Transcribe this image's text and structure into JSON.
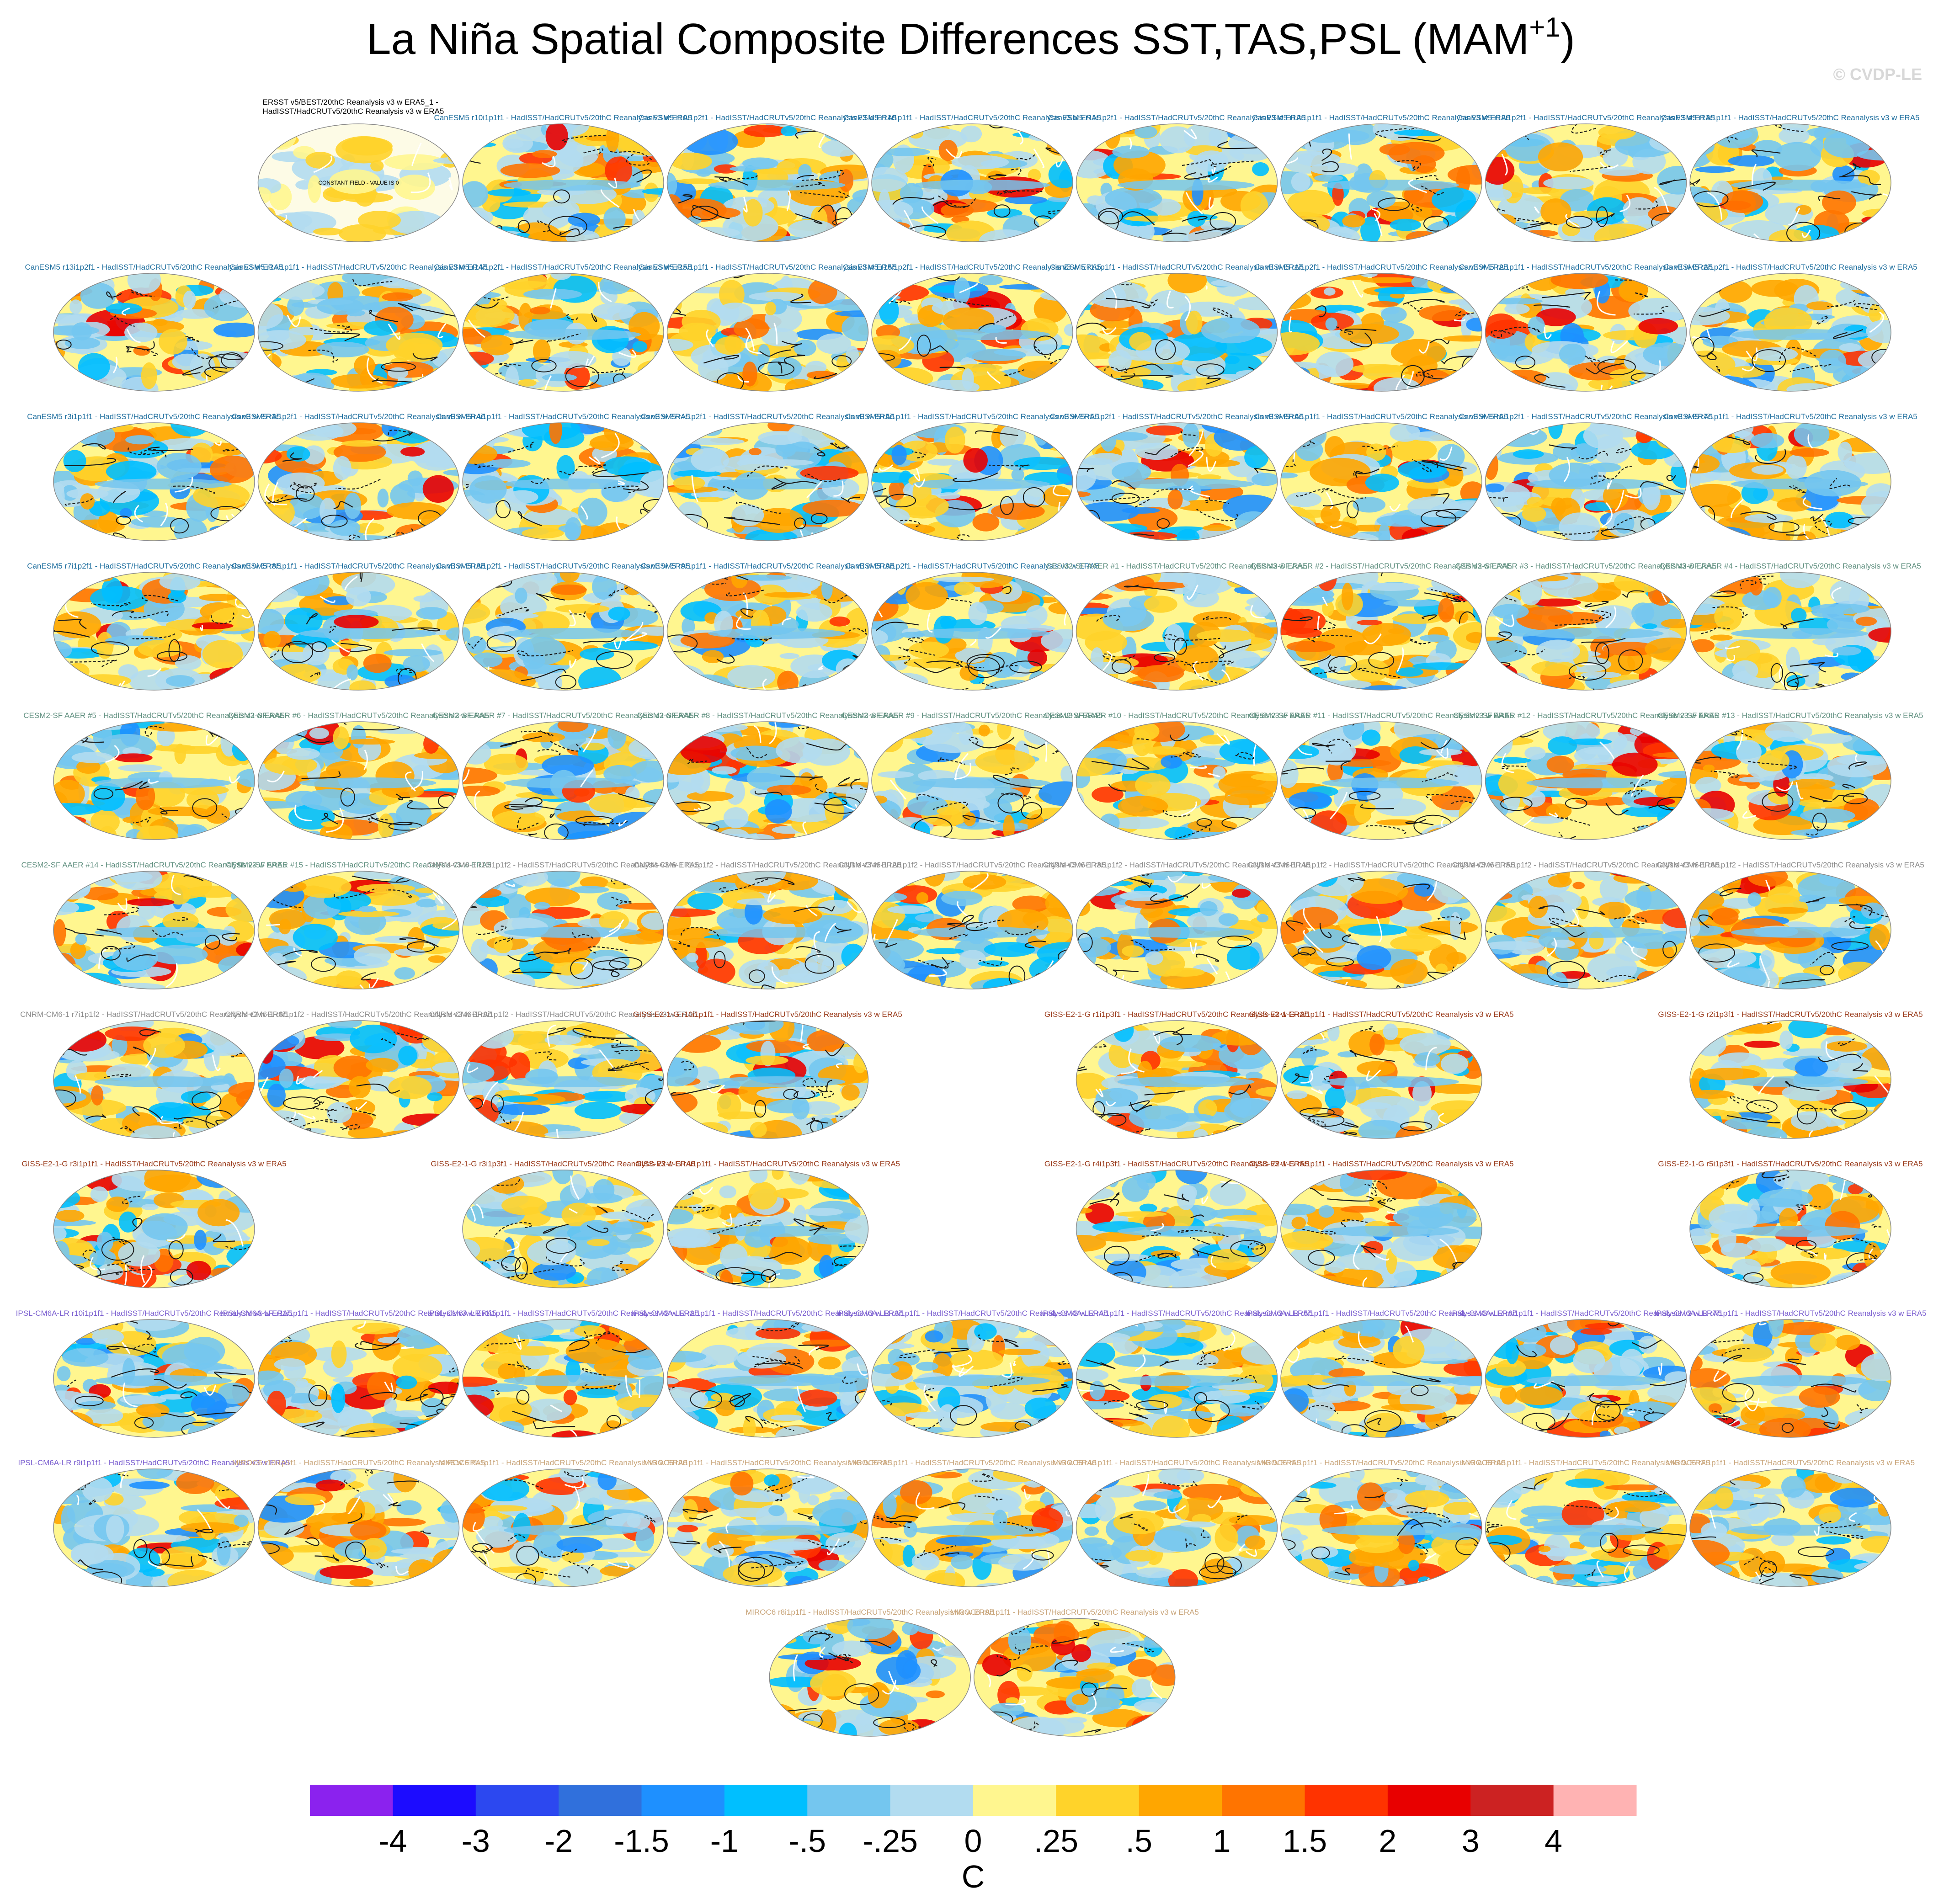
{
  "title": {
    "text": "La Niña Spatial Composite Differences SST,TAS,PSL (MAM",
    "sup": "+1",
    "end": ")"
  },
  "watermark": "© CVDP-LE",
  "rows": [
    [
      null,
      {
        "title": [
          "ERSST v5/BEST/20thC Reanalysis v3 w ERA5_1 -",
          "HadISST/HadCRUTv5/20thC Reanalysis v3 w ERA5"
        ],
        "note": "CONSTANT FIELD - VALUE IS 0",
        "color": "#000000"
      },
      {
        "title": "CanESM5 r10i1p1f1 - HadISST/HadCRUTv5/20thC Reanalysis v3 w ERA5",
        "color": "#1f6f9f"
      },
      {
        "title": "CanESM5 r10i1p2f1 - HadISST/HadCRUTv5/20thC Reanalysis v3 w ERA5",
        "color": "#1f6f9f"
      },
      {
        "title": "CanESM5 r11i1p1f1 - HadISST/HadCRUTv5/20thC Reanalysis v3 w ERA5",
        "color": "#1f6f9f"
      },
      {
        "title": "CanESM5 r11i1p2f1 - HadISST/HadCRUTv5/20thC Reanalysis v3 w ERA5",
        "color": "#1f6f9f"
      },
      {
        "title": "CanESM5 r12i1p1f1 - HadISST/HadCRUTv5/20thC Reanalysis v3 w ERA5",
        "color": "#1f6f9f"
      },
      {
        "title": "CanESM5 r12i1p2f1 - HadISST/HadCRUTv5/20thC Reanalysis v3 w ERA5",
        "color": "#1f6f9f"
      },
      {
        "title": "CanESM5 r13i1p1f1 - HadISST/HadCRUTv5/20thC Reanalysis v3 w ERA5",
        "color": "#1f6f9f"
      }
    ],
    [
      {
        "title": "CanESM5 r13i1p2f1 - HadISST/HadCRUTv5/20thC Reanalysis v3 w ERA5",
        "color": "#1f6f9f"
      },
      {
        "title": "CanESM5 r14i1p1f1 - HadISST/HadCRUTv5/20thC Reanalysis v3 w ERA5",
        "color": "#1f6f9f"
      },
      {
        "title": "CanESM5 r14i1p2f1 - HadISST/HadCRUTv5/20thC Reanalysis v3 w ERA5",
        "color": "#1f6f9f"
      },
      {
        "title": "CanESM5 r15i1p1f1 - HadISST/HadCRUTv5/20thC Reanalysis v3 w ERA5",
        "color": "#1f6f9f"
      },
      {
        "title": "CanESM5 r15i1p2f1 - HadISST/HadCRUTv5/20thC Reanalysis v3 w ERA5",
        "color": "#1f6f9f"
      },
      {
        "title": "CanESM5 r1i1p1f1 - HadISST/HadCRUTv5/20thC Reanalysis v3 w ERA5",
        "color": "#1f6f9f"
      },
      {
        "title": "CanESM5 r1i1p2f1 - HadISST/HadCRUTv5/20thC Reanalysis v3 w ERA5",
        "color": "#1f6f9f"
      },
      {
        "title": "CanESM5 r2i1p1f1 - HadISST/HadCRUTv5/20thC Reanalysis v3 w ERA5",
        "color": "#1f6f9f"
      },
      {
        "title": "CanESM5 r2i1p2f1 - HadISST/HadCRUTv5/20thC Reanalysis v3 w ERA5",
        "color": "#1f6f9f"
      }
    ],
    [
      {
        "title": "CanESM5 r3i1p1f1 - HadISST/HadCRUTv5/20thC Reanalysis v3 w ERA5",
        "color": "#1f6f9f"
      },
      {
        "title": "CanESM5 r3i1p2f1 - HadISST/HadCRUTv5/20thC Reanalysis v3 w ERA5",
        "color": "#1f6f9f"
      },
      {
        "title": "CanESM5 r4i1p1f1 - HadISST/HadCRUTv5/20thC Reanalysis v3 w ERA5",
        "color": "#1f6f9f"
      },
      {
        "title": "CanESM5 r4i1p2f1 - HadISST/HadCRUTv5/20thC Reanalysis v3 w ERA5",
        "color": "#1f6f9f"
      },
      {
        "title": "CanESM5 r5i1p1f1 - HadISST/HadCRUTv5/20thC Reanalysis v3 w ERA5",
        "color": "#1f6f9f"
      },
      {
        "title": "CanESM5 r5i1p2f1 - HadISST/HadCRUTv5/20thC Reanalysis v3 w ERA5",
        "color": "#1f6f9f"
      },
      {
        "title": "CanESM5 r6i1p1f1 - HadISST/HadCRUTv5/20thC Reanalysis v3 w ERA5",
        "color": "#1f6f9f"
      },
      {
        "title": "CanESM5 r6i1p2f1 - HadISST/HadCRUTv5/20thC Reanalysis v3 w ERA5",
        "color": "#1f6f9f"
      },
      {
        "title": "CanESM5 r7i1p1f1 - HadISST/HadCRUTv5/20thC Reanalysis v3 w ERA5",
        "color": "#1f6f9f"
      }
    ],
    [
      {
        "title": "CanESM5 r7i1p2f1 - HadISST/HadCRUTv5/20thC Reanalysis v3 w ERA5",
        "color": "#1f6f9f"
      },
      {
        "title": "CanESM5 r8i1p1f1 - HadISST/HadCRUTv5/20thC Reanalysis v3 w ERA5",
        "color": "#1f6f9f"
      },
      {
        "title": "CanESM5 r8i1p2f1 - HadISST/HadCRUTv5/20thC Reanalysis v3 w ERA5",
        "color": "#1f6f9f"
      },
      {
        "title": "CanESM5 r9i1p1f1 - HadISST/HadCRUTv5/20thC Reanalysis v3 w ERA5",
        "color": "#1f6f9f"
      },
      {
        "title": "CanESM5 r9i1p2f1 - HadISST/HadCRUTv5/20thC Reanalysis v3 w ERA5",
        "color": "#1f6f9f"
      },
      {
        "title": "CESM2-SF AAER #1 - HadISST/HadCRUTv5/20thC Reanalysis v3 w ERA5",
        "color": "#5f8f7f"
      },
      {
        "title": "CESM2-SF AAER #2 - HadISST/HadCRUTv5/20thC Reanalysis v3 w ERA5",
        "color": "#5f8f7f"
      },
      {
        "title": "CESM2-SF AAER #3 - HadISST/HadCRUTv5/20thC Reanalysis v3 w ERA5",
        "color": "#5f8f7f"
      },
      {
        "title": "CESM2-SF AAER #4 - HadISST/HadCRUTv5/20thC Reanalysis v3 w ERA5",
        "color": "#5f8f7f"
      }
    ],
    [
      {
        "title": "CESM2-SF AAER #5 - HadISST/HadCRUTv5/20thC Reanalysis v3 w ERA5",
        "color": "#5f8f7f"
      },
      {
        "title": "CESM2-SF AAER #6 - HadISST/HadCRUTv5/20thC Reanalysis v3 w ERA5",
        "color": "#5f8f7f"
      },
      {
        "title": "CESM2-SF AAER #7 - HadISST/HadCRUTv5/20thC Reanalysis v3 w ERA5",
        "color": "#5f8f7f"
      },
      {
        "title": "CESM2-SF AAER #8 - HadISST/HadCRUTv5/20thC Reanalysis v3 w ERA5",
        "color": "#5f8f7f"
      },
      {
        "title": "CESM2-SF AAER #9 - HadISST/HadCRUTv5/20thC Reanalysis v3 w ERA5",
        "color": "#5f8f7f"
      },
      {
        "title": "CESM2-SF AAER #10 - HadISST/HadCRUTv5/20thC Reanalysis v3 w ERA5",
        "color": "#5f8f7f"
      },
      {
        "title": "CESM2-SF AAER #11 - HadISST/HadCRUTv5/20thC Reanalysis v3 w ERA5",
        "color": "#5f8f7f"
      },
      {
        "title": "CESM2-SF AAER #12 - HadISST/HadCRUTv5/20thC Reanalysis v3 w ERA5",
        "color": "#5f8f7f"
      },
      {
        "title": "CESM2-SF AAER #13 - HadISST/HadCRUTv5/20thC Reanalysis v3 w ERA5",
        "color": "#5f8f7f"
      }
    ],
    [
      {
        "title": "CESM2-SF AAER #14 - HadISST/HadCRUTv5/20thC Reanalysis v3 w ERA5",
        "color": "#5f8f7f"
      },
      {
        "title": "CESM2-SF AAER #15 - HadISST/HadCRUTv5/20thC Reanalysis v3 w ERA5",
        "color": "#5f8f7f"
      },
      {
        "title": "CNRM-CM6-1 r10i1p1f2 - HadISST/HadCRUTv5/20thC Reanalysis v3 w ERA5",
        "color": "#8c8c8c"
      },
      {
        "title": "CNRM-CM6-1 r1i1p1f2 - HadISST/HadCRUTv5/20thC Reanalysis v3 w ERA5",
        "color": "#8c8c8c"
      },
      {
        "title": "CNRM-CM6-1 r2i1p1f2 - HadISST/HadCRUTv5/20thC Reanalysis v3 w ERA5",
        "color": "#8c8c8c"
      },
      {
        "title": "CNRM-CM6-1 r3i1p1f2 - HadISST/HadCRUTv5/20thC Reanalysis v3 w ERA5",
        "color": "#8c8c8c"
      },
      {
        "title": "CNRM-CM6-1 r4i1p1f2 - HadISST/HadCRUTv5/20thC Reanalysis v3 w ERA5",
        "color": "#8c8c8c"
      },
      {
        "title": "CNRM-CM6-1 r5i1p1f2 - HadISST/HadCRUTv5/20thC Reanalysis v3 w ERA5",
        "color": "#8c8c8c"
      },
      {
        "title": "CNRM-CM6-1 r6i1p1f2 - HadISST/HadCRUTv5/20thC Reanalysis v3 w ERA5",
        "color": "#8c8c8c"
      }
    ],
    [
      {
        "title": "CNRM-CM6-1 r7i1p1f2 - HadISST/HadCRUTv5/20thC Reanalysis v3 w ERA5",
        "color": "#8c8c8c"
      },
      {
        "title": "CNRM-CM6-1 r8i1p1f2 - HadISST/HadCRUTv5/20thC Reanalysis v3 w ERA5",
        "color": "#8c8c8c"
      },
      {
        "title": "CNRM-CM6-1 r9i1p1f2 - HadISST/HadCRUTv5/20thC Reanalysis v3 w ERA5",
        "color": "#8c8c8c"
      },
      {
        "title": "GISS-E2-1-G r10i1p1f1 - HadISST/HadCRUTv5/20thC Reanalysis v3 w ERA5",
        "color": "#9a3b1b"
      },
      null,
      {
        "title": "GISS-E2-1-G r1i1p3f1 - HadISST/HadCRUTv5/20thC Reanalysis v3 w ERA5",
        "color": "#9a3b1b"
      },
      {
        "title": "GISS-E2-1-G r2i1p1f1 - HadISST/HadCRUTv5/20thC Reanalysis v3 w ERA5",
        "color": "#9a3b1b"
      },
      null,
      {
        "title": "GISS-E2-1-G r2i1p3f1 - HadISST/HadCRUTv5/20thC Reanalysis v3 w ERA5",
        "color": "#9a3b1b"
      }
    ],
    [
      {
        "title": "GISS-E2-1-G r3i1p1f1 - HadISST/HadCRUTv5/20thC Reanalysis v3 w ERA5",
        "color": "#9a3b1b"
      },
      null,
      {
        "title": "GISS-E2-1-G r3i1p3f1 - HadISST/HadCRUTv5/20thC Reanalysis v3 w ERA5",
        "color": "#9a3b1b"
      },
      {
        "title": "GISS-E2-1-G r4i1p1f1 - HadISST/HadCRUTv5/20thC Reanalysis v3 w ERA5",
        "color": "#9a3b1b"
      },
      null,
      {
        "title": "GISS-E2-1-G r4i1p3f1 - HadISST/HadCRUTv5/20thC Reanalysis v3 w ERA5",
        "color": "#9a3b1b"
      },
      {
        "title": "GISS-E2-1-G r5i1p1f1 - HadISST/HadCRUTv5/20thC Reanalysis v3 w ERA5",
        "color": "#9a3b1b"
      },
      null,
      {
        "title": "GISS-E2-1-G r5i1p3f1 - HadISST/HadCRUTv5/20thC Reanalysis v3 w ERA5",
        "color": "#9a3b1b"
      }
    ],
    [
      {
        "title": "IPSL-CM6A-LR r10i1p1f1 - HadISST/HadCRUTv5/20thC Reanalysis v3 w ERA5",
        "color": "#7b5fd0"
      },
      {
        "title": "IPSL-CM6A-LR r11i1p1f1 - HadISST/HadCRUTv5/20thC Reanalysis v3 w ERA5",
        "color": "#7b5fd0"
      },
      {
        "title": "IPSL-CM6A-LR r1i1p1f1 - HadISST/HadCRUTv5/20thC Reanalysis v3 w ERA5",
        "color": "#7b5fd0"
      },
      {
        "title": "IPSL-CM6A-LR r2i1p1f1 - HadISST/HadCRUTv5/20thC Reanalysis v3 w ERA5",
        "color": "#7b5fd0"
      },
      {
        "title": "IPSL-CM6A-LR r3i1p1f1 - HadISST/HadCRUTv5/20thC Reanalysis v3 w ERA5",
        "color": "#7b5fd0"
      },
      {
        "title": "IPSL-CM6A-LR r4i1p1f1 - HadISST/HadCRUTv5/20thC Reanalysis v3 w ERA5",
        "color": "#7b5fd0"
      },
      {
        "title": "IPSL-CM6A-LR r5i1p1f1 - HadISST/HadCRUTv5/20thC Reanalysis v3 w ERA5",
        "color": "#7b5fd0"
      },
      {
        "title": "IPSL-CM6A-LR r6i1p1f1 - HadISST/HadCRUTv5/20thC Reanalysis v3 w ERA5",
        "color": "#7b5fd0"
      },
      {
        "title": "IPSL-CM6A-LR r7i1p1f1 - HadISST/HadCRUTv5/20thC Reanalysis v3 w ERA5",
        "color": "#7b5fd0"
      }
    ],
    [
      {
        "title": "IPSL-CM6A-LR r9i1p1f1 - HadISST/HadCRUTv5/20thC Reanalysis v3 w ERA5",
        "color": "#7b5fd0"
      },
      {
        "title": "MIROC6 r10i1p1f1 - HadISST/HadCRUTv5/20thC Reanalysis v3 w ERA5",
        "color": "#c9a57a"
      },
      {
        "title": "MIROC6 r1i1p1f1 - HadISST/HadCRUTv5/20thC Reanalysis v3 w ERA5",
        "color": "#c9a57a"
      },
      {
        "title": "MIROC6 r2i1p1f1 - HadISST/HadCRUTv5/20thC Reanalysis v3 w ERA5",
        "color": "#c9a57a"
      },
      {
        "title": "MIROC6 r3i1p1f1 - HadISST/HadCRUTv5/20thC Reanalysis v3 w ERA5",
        "color": "#c9a57a"
      },
      {
        "title": "MIROC6 r4i1p1f1 - HadISST/HadCRUTv5/20thC Reanalysis v3 w ERA5",
        "color": "#c9a57a"
      },
      {
        "title": "MIROC6 r5i1p1f1 - HadISST/HadCRUTv5/20thC Reanalysis v3 w ERA5",
        "color": "#c9a57a"
      },
      {
        "title": "MIROC6 r6i1p1f1 - HadISST/HadCRUTv5/20thC Reanalysis v3 w ERA5",
        "color": "#c9a57a"
      },
      {
        "title": "MIROC6 r7i1p1f1 - HadISST/HadCRUTv5/20thC Reanalysis v3 w ERA5",
        "color": "#c9a57a"
      }
    ],
    [
      {
        "title": "MIROC6 r8i1p1f1 - HadISST/HadCRUTv5/20thC Reanalysis v3 w ERA5",
        "color": "#c9a57a"
      },
      {
        "title": "MIROC6 r9i1p1f1 - HadISST/HadCRUTv5/20thC Reanalysis v3 w ERA5",
        "color": "#c9a57a"
      }
    ]
  ],
  "colorbar": {
    "colors": [
      "#8b22ee",
      "#1c0cff",
      "#2c48f0",
      "#3070dc",
      "#1e90ff",
      "#00bfff",
      "#74c6ef",
      "#b2dcf0",
      "#fff68f",
      "#ffd32a",
      "#ffa600",
      "#ff7400",
      "#ff3300",
      "#e80000",
      "#cc2222",
      "#ffb3b3"
    ],
    "ticks": [
      -4,
      -3,
      -2,
      -1.5,
      -1,
      {
        "value": -0.5,
        "label": "-.5"
      },
      {
        "value": -0.25,
        "label": "-.25"
      },
      0,
      {
        "value": 0.25,
        "label": ".25"
      },
      {
        "value": 0.5,
        "label": ".5"
      },
      1,
      1.5,
      2,
      3,
      4
    ],
    "label": "C"
  }
}
